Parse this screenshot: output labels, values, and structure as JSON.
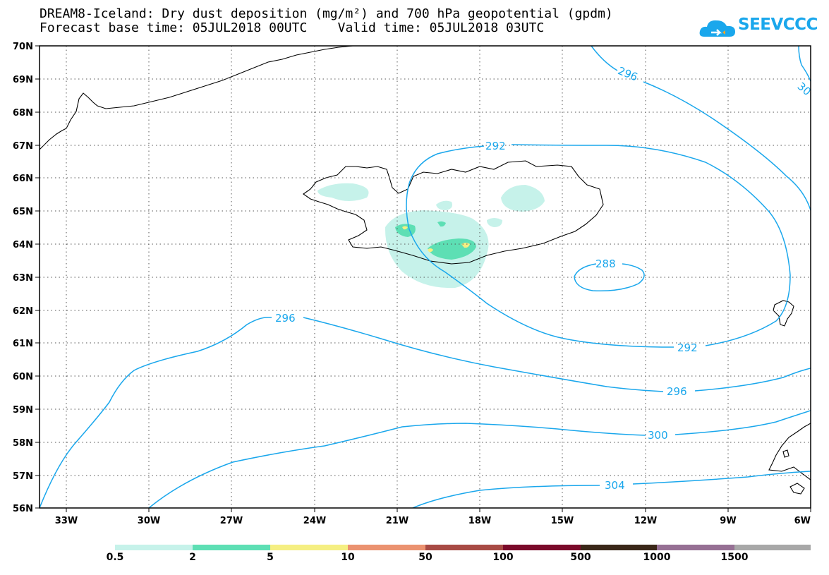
{
  "title_line1": "DREAM8-Iceland: Dry dust deposition (mg/m²) and 700 hPa geopotential (gpdm)",
  "title_line2": "Forecast base time: 05JUL2018 00UTC    Valid time: 05JUL2018 03UTC",
  "logo_text": "SEEVCCC",
  "lat_labels": [
    "70N",
    "69N",
    "68N",
    "67N",
    "66N",
    "65N",
    "64N",
    "63N",
    "62N",
    "61N",
    "60N",
    "59N",
    "58N",
    "57N",
    "56N"
  ],
  "lon_labels": [
    "33W",
    "30W",
    "27W",
    "24W",
    "21W",
    "18W",
    "15W",
    "12W",
    "9W",
    "6W"
  ],
  "contour_labels": {
    "c296a": "296",
    "c30": "30",
    "c292a": "292",
    "c288": "288",
    "c296b": "296",
    "c292b": "292",
    "c296c": "296",
    "c300": "300",
    "c304": "304"
  },
  "legend": {
    "colors": [
      "#c6f2ea",
      "#5ddfb4",
      "#f5ef82",
      "#eb9270",
      "#a84a44",
      "#7a0a2a",
      "#3a2718",
      "#967094",
      "#a8a8a8"
    ],
    "labels": [
      "0.5",
      "2",
      "5",
      "10",
      "50",
      "100",
      "500",
      "1000",
      "1500"
    ]
  }
}
